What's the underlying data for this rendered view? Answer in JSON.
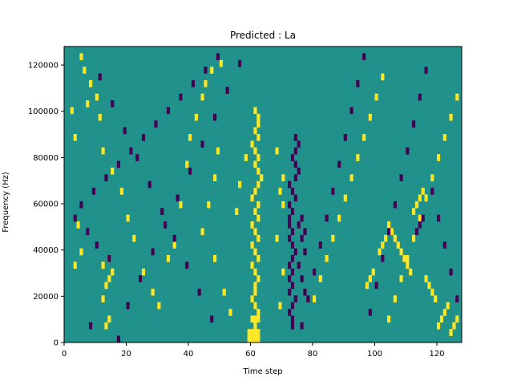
{
  "chart_data": {
    "type": "heatmap",
    "title": "Predicted : La",
    "xlabel": "Time step",
    "ylabel": "Frequency (Hz)",
    "xlim": [
      0,
      128
    ],
    "ylim": [
      0,
      128000
    ],
    "xticks": [
      0,
      20,
      40,
      60,
      80,
      100,
      120
    ],
    "yticks": [
      0,
      20000,
      40000,
      60000,
      80000,
      100000,
      120000
    ],
    "xtick_labels": [
      "0",
      "20",
      "40",
      "60",
      "80",
      "100",
      "120"
    ],
    "ytick_labels": [
      "0",
      "20000",
      "40000",
      "60000",
      "80000",
      "100000",
      "120000"
    ],
    "grid": false,
    "legend": "none",
    "colors": {
      "background": "#21918c",
      "high": "#fde725",
      "low": "#440154"
    },
    "values_legend": {
      "0": "background",
      "1": "high",
      "-1": "low"
    },
    "rows": 44,
    "cols": 128,
    "cells": [
      [
        62,
        0,
        1
      ],
      [
        61,
        0,
        1
      ],
      [
        60,
        0,
        1
      ],
      [
        59,
        0,
        1
      ],
      [
        62,
        1,
        1
      ],
      [
        61,
        1,
        1
      ],
      [
        60,
        1,
        1
      ],
      [
        59,
        1,
        1
      ],
      [
        61,
        2,
        1
      ],
      [
        62,
        3,
        1
      ],
      [
        61,
        3,
        1
      ],
      [
        60,
        3,
        1
      ],
      [
        62,
        4,
        1
      ],
      [
        61,
        5,
        1
      ],
      [
        60,
        6,
        1
      ],
      [
        61,
        7,
        1
      ],
      [
        61,
        8,
        1
      ],
      [
        62,
        9,
        1
      ],
      [
        61,
        10,
        1
      ],
      [
        60,
        11,
        1
      ],
      [
        62,
        12,
        1
      ],
      [
        61,
        13,
        1
      ],
      [
        60,
        14,
        1
      ],
      [
        62,
        15,
        1
      ],
      [
        61,
        16,
        1
      ],
      [
        60,
        17,
        1
      ],
      [
        62,
        18,
        1
      ],
      [
        61,
        19,
        1
      ],
      [
        62,
        20,
        1
      ],
      [
        60,
        21,
        1
      ],
      [
        61,
        22,
        1
      ],
      [
        62,
        23,
        1
      ],
      [
        63,
        24,
        1
      ],
      [
        62,
        25,
        1
      ],
      [
        61,
        26,
        1
      ],
      [
        62,
        27,
        1
      ],
      [
        61,
        28,
        1
      ],
      [
        60,
        29,
        1
      ],
      [
        62,
        30,
        1
      ],
      [
        61,
        31,
        1
      ],
      [
        62,
        32,
        1
      ],
      [
        62,
        33,
        1
      ],
      [
        61,
        34,
        1
      ],
      [
        73,
        2,
        -1
      ],
      [
        73,
        3,
        -1
      ],
      [
        72,
        4,
        -1
      ],
      [
        73,
        5,
        -1
      ],
      [
        74,
        6,
        -1
      ],
      [
        72,
        7,
        -1
      ],
      [
        73,
        8,
        -1
      ],
      [
        72,
        9,
        -1
      ],
      [
        73,
        10,
        -1
      ],
      [
        72,
        11,
        -1
      ],
      [
        73,
        12,
        -1
      ],
      [
        74,
        13,
        -1
      ],
      [
        73,
        14,
        -1
      ],
      [
        72,
        15,
        -1
      ],
      [
        73,
        16,
        -1
      ],
      [
        72,
        17,
        -1
      ],
      [
        72,
        18,
        -1
      ],
      [
        73,
        19,
        -1
      ],
      [
        72,
        20,
        -1
      ],
      [
        74,
        21,
        -1
      ],
      [
        73,
        22,
        -1
      ],
      [
        72,
        23,
        -1
      ],
      [
        74,
        24,
        -1
      ],
      [
        75,
        25,
        -1
      ],
      [
        74,
        26,
        -1
      ],
      [
        73,
        27,
        -1
      ],
      [
        74,
        28,
        -1
      ],
      [
        75,
        29,
        -1
      ],
      [
        74,
        30,
        -1
      ],
      [
        69,
        5,
        1
      ],
      [
        70,
        10,
        1
      ],
      [
        68,
        15,
        1
      ],
      [
        70,
        20,
        1
      ],
      [
        69,
        22,
        1
      ],
      [
        70,
        24,
        1
      ],
      [
        68,
        28,
        1
      ],
      [
        13,
        2,
        1
      ],
      [
        14,
        3,
        1
      ],
      [
        12,
        6,
        1
      ],
      [
        13,
        8,
        1
      ],
      [
        14,
        9,
        1
      ],
      [
        15,
        10,
        1
      ],
      [
        12,
        11,
        1
      ],
      [
        14,
        12,
        1
      ],
      [
        3,
        11,
        1
      ],
      [
        5,
        13,
        1
      ],
      [
        4,
        17,
        1
      ],
      [
        2,
        34,
        1
      ],
      [
        3,
        30,
        1
      ],
      [
        5,
        42,
        1
      ],
      [
        6,
        40,
        1
      ],
      [
        8,
        38,
        1
      ],
      [
        10,
        36,
        1
      ],
      [
        7,
        35,
        1
      ],
      [
        11,
        33,
        1
      ],
      [
        12,
        28,
        1
      ],
      [
        15,
        25,
        1
      ],
      [
        18,
        22,
        1
      ],
      [
        20,
        18,
        1
      ],
      [
        22,
        15,
        1
      ],
      [
        25,
        10,
        1
      ],
      [
        28,
        7,
        1
      ],
      [
        30,
        5,
        1
      ],
      [
        33,
        12,
        1
      ],
      [
        35,
        14,
        1
      ],
      [
        37,
        20,
        1
      ],
      [
        39,
        26,
        1
      ],
      [
        40,
        30,
        1
      ],
      [
        42,
        33,
        1
      ],
      [
        44,
        36,
        1
      ],
      [
        45,
        38,
        1
      ],
      [
        47,
        40,
        1
      ],
      [
        48,
        12,
        1
      ],
      [
        50,
        41,
        1
      ],
      [
        51,
        7,
        1
      ],
      [
        53,
        4,
        1
      ],
      [
        55,
        19,
        1
      ],
      [
        56,
        23,
        1
      ],
      [
        58,
        27,
        1
      ],
      [
        44,
        16,
        1
      ],
      [
        46,
        20,
        1
      ],
      [
        48,
        24,
        1
      ],
      [
        49,
        28,
        1
      ],
      [
        80,
        6,
        1
      ],
      [
        82,
        9,
        1
      ],
      [
        84,
        12,
        1
      ],
      [
        86,
        15,
        1
      ],
      [
        88,
        18,
        1
      ],
      [
        90,
        21,
        1
      ],
      [
        92,
        24,
        1
      ],
      [
        94,
        27,
        1
      ],
      [
        96,
        30,
        1
      ],
      [
        98,
        33,
        1
      ],
      [
        100,
        36,
        1
      ],
      [
        102,
        39,
        1
      ],
      [
        104,
        3,
        1
      ],
      [
        106,
        6,
        1
      ],
      [
        108,
        9,
        1
      ],
      [
        110,
        12,
        1
      ],
      [
        112,
        15,
        1
      ],
      [
        114,
        18,
        1
      ],
      [
        116,
        21,
        1
      ],
      [
        118,
        24,
        1
      ],
      [
        120,
        27,
        1
      ],
      [
        122,
        30,
        1
      ],
      [
        124,
        33,
        1
      ],
      [
        126,
        36,
        1
      ],
      [
        104,
        17,
        1
      ],
      [
        105,
        16,
        1
      ],
      [
        106,
        15,
        1
      ],
      [
        107,
        14,
        1
      ],
      [
        108,
        13,
        1
      ],
      [
        109,
        12,
        1
      ],
      [
        110,
        11,
        1
      ],
      [
        111,
        10,
        1
      ],
      [
        112,
        19,
        1
      ],
      [
        113,
        20,
        1
      ],
      [
        114,
        21,
        1
      ],
      [
        115,
        22,
        1
      ],
      [
        116,
        9,
        1
      ],
      [
        117,
        8,
        1
      ],
      [
        118,
        7,
        1
      ],
      [
        119,
        6,
        1
      ],
      [
        120,
        2,
        1
      ],
      [
        121,
        3,
        1
      ],
      [
        122,
        4,
        1
      ],
      [
        123,
        5,
        1
      ],
      [
        124,
        1,
        1
      ],
      [
        125,
        2,
        1
      ],
      [
        126,
        3,
        1
      ],
      [
        97,
        8,
        1
      ],
      [
        98,
        9,
        1
      ],
      [
        99,
        10,
        1
      ],
      [
        101,
        13,
        1
      ],
      [
        102,
        14,
        1
      ],
      [
        103,
        15,
        1
      ],
      [
        8,
        2,
        -1
      ],
      [
        17,
        0,
        -1
      ],
      [
        20,
        5,
        -1
      ],
      [
        24,
        9,
        -1
      ],
      [
        28,
        13,
        -1
      ],
      [
        32,
        17,
        -1
      ],
      [
        36,
        21,
        -1
      ],
      [
        40,
        25,
        -1
      ],
      [
        44,
        29,
        -1
      ],
      [
        48,
        33,
        -1
      ],
      [
        52,
        37,
        -1
      ],
      [
        56,
        41,
        -1
      ],
      [
        11,
        39,
        -1
      ],
      [
        15,
        35,
        -1
      ],
      [
        19,
        31,
        -1
      ],
      [
        23,
        27,
        -1
      ],
      [
        27,
        23,
        -1
      ],
      [
        31,
        19,
        -1
      ],
      [
        35,
        15,
        -1
      ],
      [
        39,
        11,
        -1
      ],
      [
        43,
        7,
        -1
      ],
      [
        47,
        3,
        -1
      ],
      [
        49,
        42,
        -1
      ],
      [
        45,
        40,
        -1
      ],
      [
        41,
        38,
        -1
      ],
      [
        37,
        36,
        -1
      ],
      [
        33,
        34,
        -1
      ],
      [
        29,
        32,
        -1
      ],
      [
        25,
        30,
        -1
      ],
      [
        21,
        28,
        -1
      ],
      [
        17,
        26,
        -1
      ],
      [
        13,
        24,
        -1
      ],
      [
        9,
        22,
        -1
      ],
      [
        5,
        20,
        -1
      ],
      [
        3,
        18,
        -1
      ],
      [
        7,
        16,
        -1
      ],
      [
        10,
        14,
        -1
      ],
      [
        14,
        12,
        -1
      ],
      [
        76,
        2,
        -1
      ],
      [
        78,
        6,
        -1
      ],
      [
        80,
        10,
        -1
      ],
      [
        82,
        14,
        -1
      ],
      [
        84,
        18,
        -1
      ],
      [
        86,
        22,
        -1
      ],
      [
        88,
        26,
        -1
      ],
      [
        90,
        30,
        -1
      ],
      [
        92,
        34,
        -1
      ],
      [
        94,
        38,
        -1
      ],
      [
        96,
        42,
        -1
      ],
      [
        98,
        4,
        -1
      ],
      [
        100,
        8,
        -1
      ],
      [
        102,
        12,
        -1
      ],
      [
        104,
        16,
        -1
      ],
      [
        106,
        20,
        -1
      ],
      [
        108,
        24,
        -1
      ],
      [
        110,
        28,
        -1
      ],
      [
        112,
        32,
        -1
      ],
      [
        114,
        36,
        -1
      ],
      [
        116,
        40,
        -1
      ],
      [
        118,
        22,
        -1
      ],
      [
        120,
        18,
        -1
      ],
      [
        122,
        14,
        -1
      ],
      [
        124,
        10,
        -1
      ],
      [
        126,
        6,
        -1
      ],
      [
        114,
        17,
        -1
      ],
      [
        115,
        18,
        -1
      ],
      [
        113,
        16,
        -1
      ],
      [
        76,
        15,
        -1
      ],
      [
        77,
        16,
        -1
      ],
      [
        75,
        17,
        -1
      ],
      [
        76,
        18,
        -1
      ],
      [
        77,
        13,
        -1
      ],
      [
        75,
        11,
        -1
      ],
      [
        76,
        9,
        -1
      ],
      [
        77,
        7,
        -1
      ]
    ]
  }
}
